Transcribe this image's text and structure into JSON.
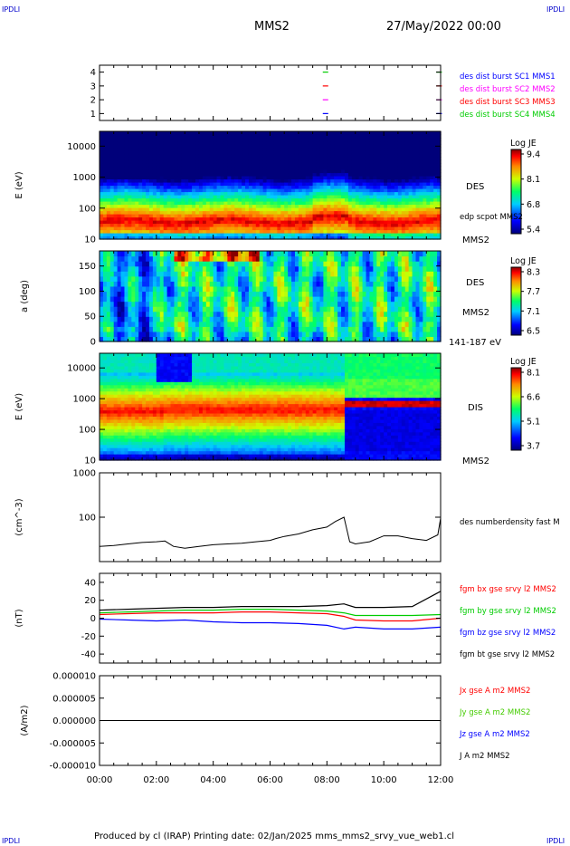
{
  "page": {
    "corner_label": "IPDLI",
    "spacecraft": "MMS2",
    "datetime": "27/May/2022 00:00",
    "footer": "Produced by cl (IRAP)   Printing date: 02/Jan/2025   mms_mms2_srvy_vue_web1.cl"
  },
  "colors": {
    "black": "#000000",
    "blue": "#0000ff",
    "magenta": "#ff00ff",
    "red": "#ff0000",
    "green": "#00cc00",
    "lime": "#44cc00"
  },
  "chart_data": [
    {
      "type": "scatter",
      "ylim": [
        0.5,
        4.5
      ],
      "ytick_labels": [
        "1",
        "2",
        "3",
        "4"
      ],
      "series": [
        {
          "name": "des dist burst SC1 MMS1",
          "y": 1,
          "x_hours": [
            7.95,
            11.95
          ],
          "color": "#0000ff"
        },
        {
          "name": "des dist burst SC2 MMS2",
          "y": 2,
          "x_hours": [
            7.95,
            11.95
          ],
          "color": "#ff00ff"
        },
        {
          "name": "des dist burst SC3 MMS3",
          "y": 3,
          "x_hours": [
            7.95,
            11.95
          ],
          "color": "#ff0000"
        },
        {
          "name": "des dist burst SC4 MMS4",
          "y": 4,
          "x_hours": [
            7.95,
            11.95
          ],
          "color": "#00cc00"
        }
      ]
    },
    {
      "type": "heatmap",
      "ylabel": "E (eV)",
      "ytick_labels": [
        "10",
        "100",
        "1000",
        "10000"
      ],
      "yscale": "log",
      "ylim": [
        10,
        30000
      ],
      "labels": [
        "DES",
        "edp scpot MMS2",
        "MMS2"
      ],
      "colorbar": {
        "title": "Log JE",
        "ticks": [
          "9.4",
          "8.1",
          "6.8",
          "5.4"
        ]
      }
    },
    {
      "type": "heatmap",
      "ylabel": "a (deg)",
      "ytick_labels": [
        "0",
        "50",
        "100",
        "150"
      ],
      "ylim": [
        0,
        180
      ],
      "labels": [
        "DES",
        "MMS2",
        "141-187 eV"
      ],
      "colorbar": {
        "title": "Log JE",
        "ticks": [
          "8.3",
          "7.7",
          "7.1",
          "6.5"
        ]
      }
    },
    {
      "type": "heatmap",
      "ylabel": "E (eV)",
      "ytick_labels": [
        "10",
        "100",
        "1000",
        "10000"
      ],
      "yscale": "log",
      "ylim": [
        10,
        30000
      ],
      "labels": [
        "DIS",
        "MMS2"
      ],
      "colorbar": {
        "title": "Log JE",
        "ticks": [
          "8.1",
          "6.6",
          "5.1",
          "3.7"
        ]
      }
    },
    {
      "type": "line",
      "ylabel": "(cm^-3)",
      "ytick_labels": [
        "100",
        "1000"
      ],
      "yscale": "log",
      "ylim": [
        10,
        1000
      ],
      "series": [
        {
          "name": "des numberdensity fast M",
          "color": "#000000",
          "x": [
            0,
            0.5,
            1,
            1.5,
            2,
            2.3,
            2.6,
            3,
            3.5,
            4,
            4.5,
            5,
            5.5,
            6,
            6.2,
            6.5,
            7,
            7.5,
            8,
            8.3,
            8.6,
            8.8,
            9,
            9.5,
            10,
            10.5,
            11,
            11.5,
            11.9,
            12
          ],
          "y": [
            22,
            23,
            25,
            27,
            28,
            29,
            22,
            20,
            22,
            24,
            25,
            26,
            28,
            30,
            33,
            37,
            42,
            52,
            60,
            80,
            100,
            28,
            25,
            28,
            38,
            38,
            33,
            30,
            40,
            95
          ]
        }
      ]
    },
    {
      "type": "line",
      "ylabel": "(nT)",
      "ytick_labels": [
        "-40",
        "-20",
        "0",
        "20",
        "40"
      ],
      "ylim": [
        -50,
        50
      ],
      "series": [
        {
          "name": "fgm bx gse srvy l2 MMS2",
          "color": "#ff0000",
          "x": [
            0,
            1,
            2,
            3,
            4,
            5,
            6,
            7,
            8,
            8.6,
            9,
            10,
            11,
            12
          ],
          "y": [
            4,
            5,
            6,
            6,
            6,
            7,
            7,
            6,
            5,
            2,
            -2,
            -3,
            -3,
            0
          ]
        },
        {
          "name": "fgm by gse srvy l2 MMS2",
          "color": "#00cc00",
          "x": [
            0,
            1,
            2,
            3,
            4,
            5,
            6,
            7,
            8,
            8.6,
            9,
            10,
            11,
            12
          ],
          "y": [
            6,
            7,
            8,
            9,
            9,
            10,
            10,
            9,
            8,
            6,
            3,
            3,
            3,
            4
          ]
        },
        {
          "name": "fgm bz gse srvy l2 MMS2",
          "color": "#0000ff",
          "x": [
            0,
            1,
            2,
            3,
            4,
            5,
            6,
            7,
            8,
            8.6,
            9,
            10,
            11,
            12
          ],
          "y": [
            -1,
            -2,
            -3,
            -2,
            -4,
            -5,
            -5,
            -6,
            -8,
            -12,
            -10,
            -12,
            -12,
            -10
          ]
        },
        {
          "name": "fgm bt gse srvy l2 MMS2",
          "color": "#000000",
          "x": [
            0,
            1,
            2,
            3,
            4,
            5,
            6,
            7,
            8,
            8.6,
            9,
            10,
            11,
            12
          ],
          "y": [
            9,
            10,
            11,
            12,
            12,
            13,
            13,
            13,
            14,
            16,
            12,
            12,
            13,
            30
          ]
        }
      ]
    },
    {
      "type": "line",
      "ylabel": "(A/m2)",
      "ytick_labels": [
        "-0.000010",
        "-0.000005",
        "0.000000",
        "0.000005",
        "0.000010"
      ],
      "ylim": [
        -1e-05,
        1e-05
      ],
      "xlabel": "",
      "xtick_labels": [
        "00:00",
        "02:00",
        "04:00",
        "06:00",
        "08:00",
        "10:00",
        "12:00"
      ],
      "series": [
        {
          "name": "Jx gse A m2 MMS2",
          "color": "#ff0000",
          "x": [
            0,
            12
          ],
          "y": [
            0,
            0
          ]
        },
        {
          "name": "Jy gse A m2 MMS2",
          "color": "#44cc00",
          "x": [
            0,
            12
          ],
          "y": [
            0,
            0
          ]
        },
        {
          "name": "Jz gse A m2 MMS2",
          "color": "#0000ff",
          "x": [
            0,
            12
          ],
          "y": [
            0,
            0
          ]
        },
        {
          "name": "J A m2 MMS2",
          "color": "#000000",
          "x": [
            0,
            12
          ],
          "y": [
            0,
            0
          ]
        }
      ]
    }
  ]
}
